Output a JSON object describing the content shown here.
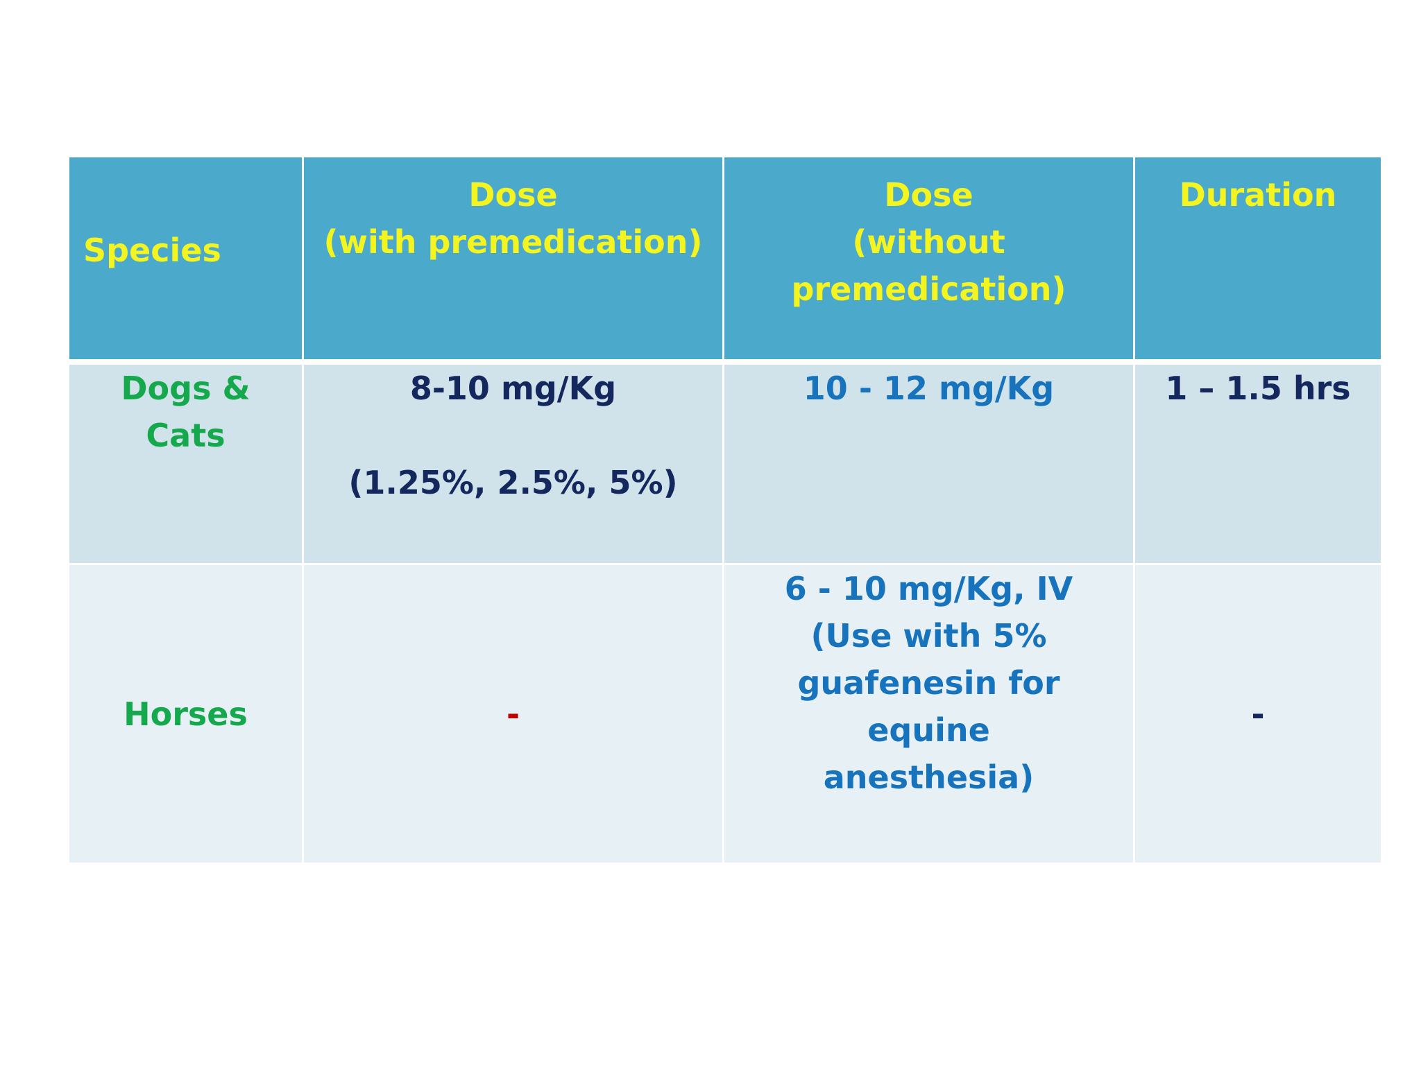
{
  "table": {
    "headers": {
      "species": "Species",
      "dose_with_title": "Dose",
      "dose_with_sub": "(with premedication)",
      "dose_without_title": "Dose",
      "dose_without_sub1": "(without",
      "dose_without_sub2": "premedication)",
      "duration": "Duration"
    },
    "rows": [
      {
        "species": "Dogs & Cats",
        "dose_with": "8-10 mg/Kg",
        "dose_with_concentration": "(1.25%, 2.5%, 5%)",
        "dose_without": "10 - 12 mg/Kg",
        "duration": "1 – 1.5 hrs"
      },
      {
        "species": "Horses",
        "dose_with": "-",
        "dose_without_lines": [
          "6 - 10 mg/Kg, IV",
          "(Use with 5%",
          "guafenesin for equine",
          "anesthesia)"
        ],
        "duration": "-"
      }
    ]
  },
  "colors": {
    "header_bg": "#4ba9cb",
    "header_text": "#f4f420",
    "row1_bg": "#d1e3ea",
    "row2_bg": "#e7f0f5",
    "species_text": "#16a84c",
    "dark_text": "#14285e",
    "blue_text": "#1873bd",
    "red_text": "#c00000"
  }
}
